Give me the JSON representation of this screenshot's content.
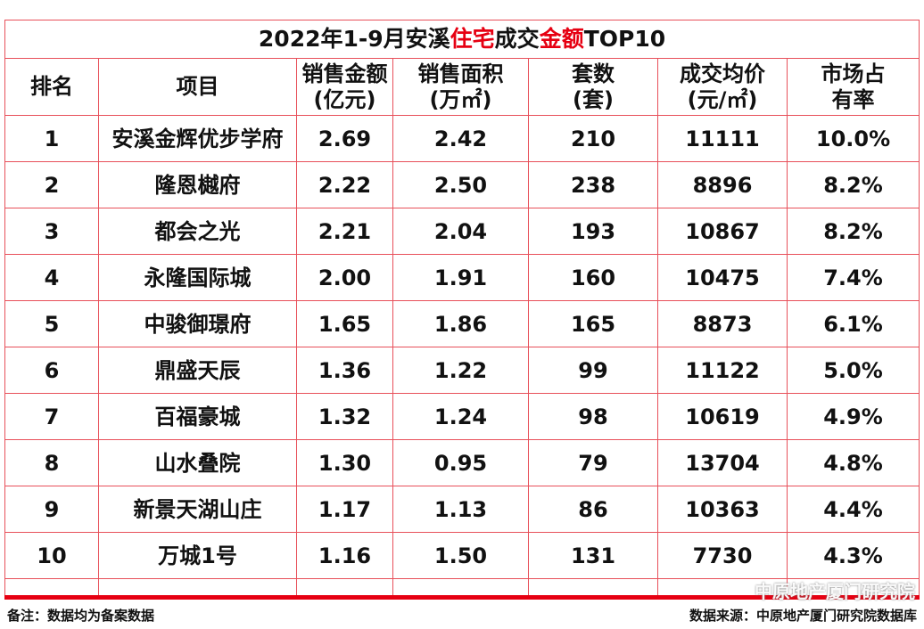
{
  "title_parts": [
    "2022年1-9月安溪",
    "住宅",
    "成交",
    "金额",
    "TOP10"
  ],
  "table": {
    "header": [
      [
        "排名"
      ],
      [
        "项目"
      ],
      [
        "销售金额",
        "(亿元)"
      ],
      [
        "销售面积",
        "(万㎡)"
      ],
      [
        "套数",
        "(套)"
      ],
      [
        "成交均价",
        "(元/㎡)"
      ],
      [
        "市场占",
        "有率"
      ]
    ],
    "rows": [
      [
        "1",
        "安溪金辉优步学府",
        "2.69",
        "2.42",
        "210",
        "11111",
        "10.0%"
      ],
      [
        "2",
        "隆恩樾府",
        "2.22",
        "2.50",
        "238",
        "8896",
        "8.2%"
      ],
      [
        "3",
        "都会之光",
        "2.21",
        "2.04",
        "193",
        "10867",
        "8.2%"
      ],
      [
        "4",
        "永隆国际城",
        "2.00",
        "1.91",
        "160",
        "10475",
        "7.4%"
      ],
      [
        "5",
        "中骏御璟府",
        "1.65",
        "1.86",
        "165",
        "8873",
        "6.1%"
      ],
      [
        "6",
        "鼎盛天辰",
        "1.36",
        "1.22",
        "99",
        "11122",
        "5.0%"
      ],
      [
        "7",
        "百福豪城",
        "1.32",
        "1.24",
        "98",
        "10619",
        "4.9%"
      ],
      [
        "8",
        "山水叠院",
        "1.30",
        "0.95",
        "79",
        "13704",
        "4.8%"
      ],
      [
        "9",
        "新景天湖山庄",
        "1.17",
        "1.13",
        "86",
        "10363",
        "4.4%"
      ],
      [
        "10",
        "万城1号",
        "1.16",
        "1.50",
        "131",
        "7730",
        "4.3%"
      ]
    ]
  },
  "footer": {
    "note": "备注：数据均为备案数据",
    "source": "数据来源：中原地产厦门研究院数据库"
  },
  "watermark": "中原地产厦门研究院"
}
